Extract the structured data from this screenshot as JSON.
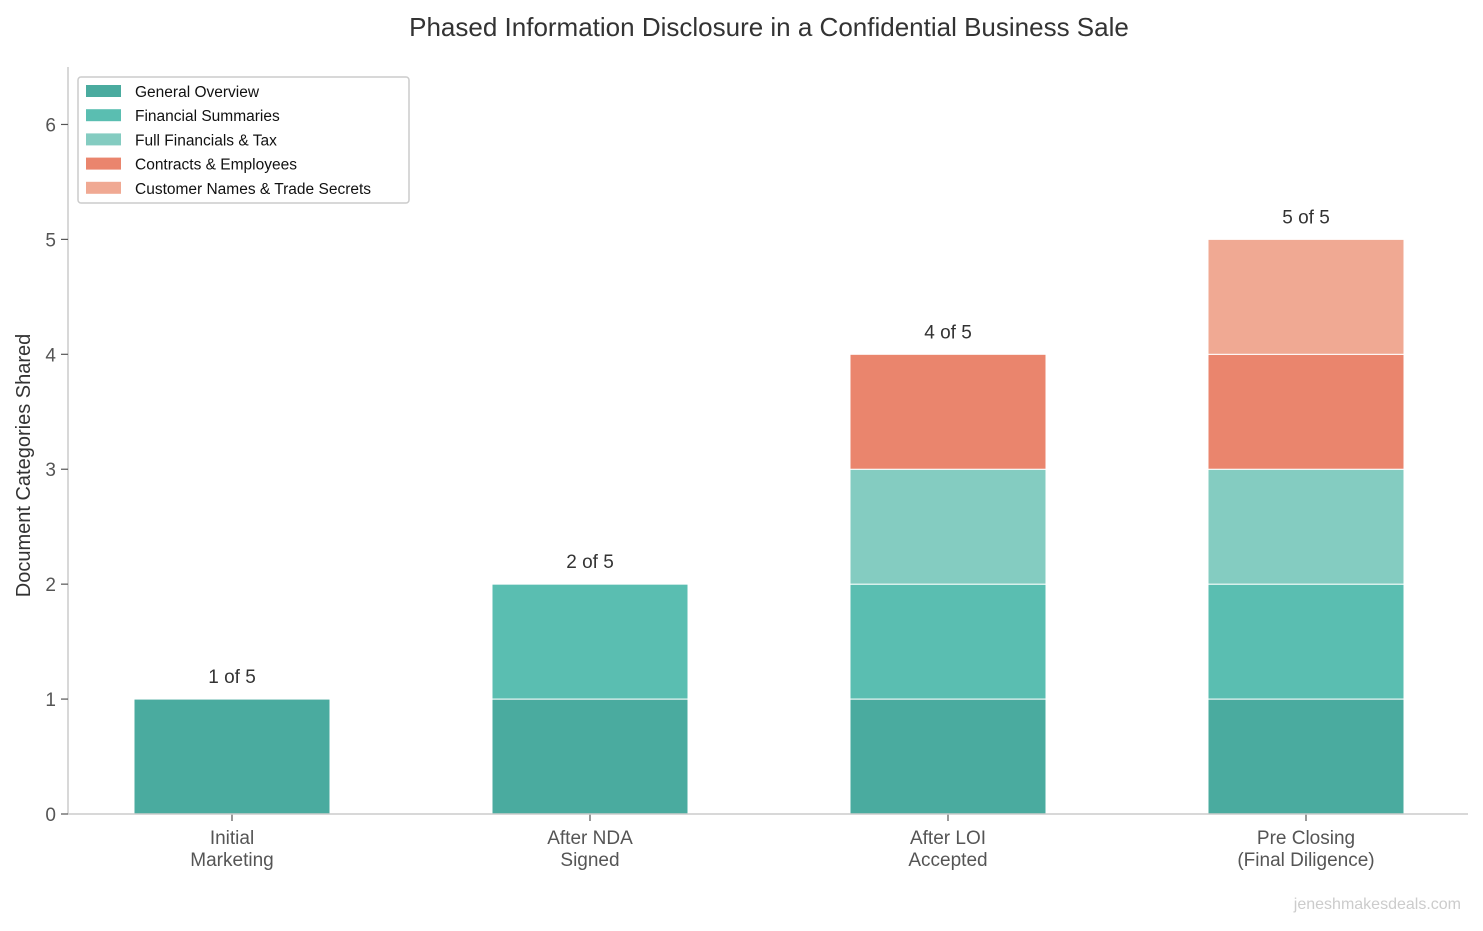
{
  "chart_data": {
    "type": "bar",
    "stacked": true,
    "title": "Phased Information Disclosure in a Confidential Business Sale",
    "xlabel": "",
    "ylabel": "Document Categories Shared",
    "ylim": [
      0,
      6.5
    ],
    "yticks": [
      0,
      1,
      2,
      3,
      4,
      5,
      6
    ],
    "grid": false,
    "legend_position": "top-left",
    "categories": [
      "Initial\nMarketing",
      "After NDA\nSigned",
      "After LOI\nAccepted",
      "Pre Closing\n(Final Diligence)"
    ],
    "series": [
      {
        "name": "General Overview",
        "color": "#4aab9f",
        "values": [
          1,
          1,
          1,
          1
        ]
      },
      {
        "name": "Financial Summaries",
        "color": "#5abeb1",
        "values": [
          0,
          1,
          1,
          1
        ]
      },
      {
        "name": "Full Financials & Tax",
        "color": "#84ccc1",
        "values": [
          0,
          0,
          1,
          1
        ]
      },
      {
        "name": "Contracts & Employees",
        "color": "#ea856d",
        "values": [
          0,
          0,
          1,
          1
        ]
      },
      {
        "name": "Customer Names & Trade Secrets",
        "color": "#f0a993",
        "values": [
          0,
          0,
          0,
          1
        ]
      }
    ],
    "data_labels": [
      "1 of 5",
      "2 of 5",
      "4 of 5",
      "5 of 5"
    ],
    "watermark": "jeneshmakesdeals.com"
  }
}
